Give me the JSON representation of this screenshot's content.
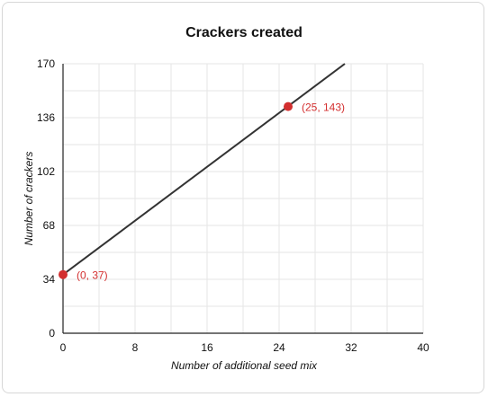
{
  "chart_data": {
    "type": "line",
    "title": "Crackers created",
    "xlabel": "Number of additional seed mix",
    "ylabel": "Number of crackers",
    "xlim": [
      0,
      40
    ],
    "ylim": [
      0,
      170
    ],
    "x_ticks": [
      0,
      8,
      16,
      24,
      32,
      40
    ],
    "y_ticks": [
      0,
      34,
      68,
      102,
      136,
      170
    ],
    "grid": true,
    "colors": {
      "line": "#333333",
      "points": "#d32f2f",
      "grid": "#e6e6e6"
    },
    "series": [
      {
        "x": [
          0,
          31.3
        ],
        "y": [
          37,
          170
        ]
      }
    ],
    "points": [
      {
        "x": 0,
        "y": 37,
        "label": "(0, 37)"
      },
      {
        "x": 25,
        "y": 143,
        "label": "(25, 143)"
      }
    ]
  }
}
